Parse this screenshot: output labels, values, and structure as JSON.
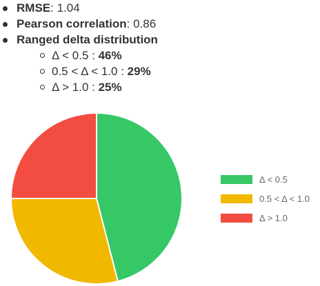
{
  "metrics": {
    "rmse_label": "RMSE",
    "rmse_value": ": 1.04",
    "pearson_label": "Pearson correlation",
    "pearson_value": ": 0.86",
    "ranged_label": "Ranged delta distribution"
  },
  "ranges": [
    {
      "label": "Δ < 0.5 : ",
      "value": "46%"
    },
    {
      "label": "0.5 < Δ < 1.0 : ",
      "value": "29%"
    },
    {
      "label": "Δ > 1.0 : ",
      "value": "25%"
    }
  ],
  "chart_data": {
    "type": "pie",
    "categories": [
      "Δ < 0.5",
      "0.5 < Δ < 1.0",
      "Δ > 1.0"
    ],
    "values": [
      46,
      29,
      25
    ],
    "colors": [
      "#36c767",
      "#f1b800",
      "#f24d40"
    ],
    "legend_position": "right"
  }
}
